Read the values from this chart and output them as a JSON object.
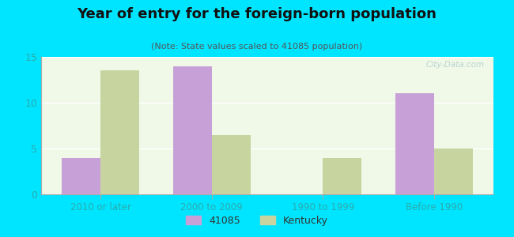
{
  "title": "Year of entry for the foreign-born population",
  "subtitle": "(Note: State values scaled to 41085 population)",
  "categories": [
    "2010 or later",
    "2000 to 2009",
    "1990 to 1999",
    "Before 1990"
  ],
  "values_41085": [
    4.0,
    14.0,
    0.0,
    11.0
  ],
  "values_kentucky": [
    13.5,
    6.5,
    4.0,
    5.0
  ],
  "color_41085": "#c8a0d8",
  "color_kentucky": "#c8d4a0",
  "background_outer": "#00e5ff",
  "background_inner": "#f0f8e8",
  "ylim": [
    0,
    15
  ],
  "yticks": [
    0,
    5,
    10,
    15
  ],
  "bar_width": 0.35,
  "legend_label_1": "41085",
  "legend_label_2": "Kentucky",
  "watermark": "City-Data.com",
  "title_color": "#111111",
  "subtitle_color": "#555555",
  "tick_color": "#2aacac"
}
